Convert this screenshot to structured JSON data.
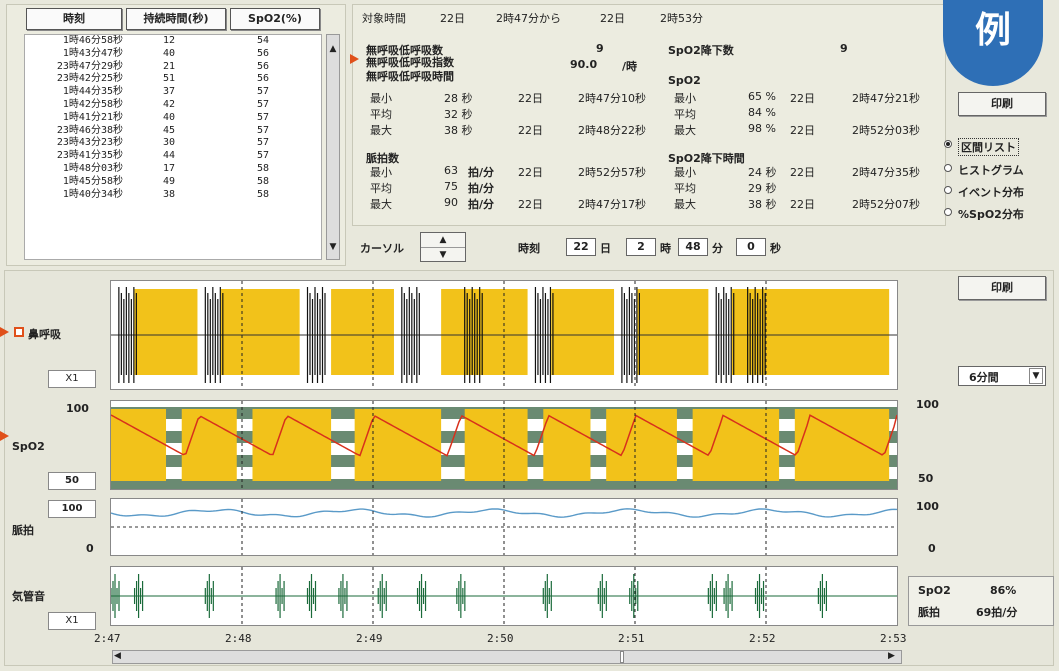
{
  "event_table": {
    "headers": [
      "時刻",
      "持続時間(秒)",
      "SpO2(%)"
    ],
    "rows": [
      [
        "1時46分58秒",
        "12",
        "54"
      ],
      [
        "1時43分47秒",
        "40",
        "56"
      ],
      [
        "23時47分29秒",
        "21",
        "56"
      ],
      [
        "23時42分25秒",
        "51",
        "56"
      ],
      [
        "1時44分35秒",
        "37",
        "57"
      ],
      [
        "1時42分58秒",
        "42",
        "57"
      ],
      [
        "1時41分21秒",
        "40",
        "57"
      ],
      [
        "23時46分38秒",
        "45",
        "57"
      ],
      [
        "23時43分23秒",
        "30",
        "57"
      ],
      [
        "23時41分35秒",
        "44",
        "57"
      ],
      [
        "1時48分03秒",
        "17",
        "58"
      ],
      [
        "1時45分58秒",
        "49",
        "58"
      ],
      [
        "1時40分34秒",
        "38",
        "58"
      ]
    ]
  },
  "summary": {
    "period_label": "対象時間",
    "period_from_day": "22日",
    "period_from_time": "2時47分から",
    "period_to_day": "22日",
    "period_to_time": "2時53分",
    "apnea_count_label": "無呼吸低呼吸数",
    "apnea_count_value": "9",
    "apnea_index_label": "無呼吸低呼吸指数",
    "apnea_index_value": "90.0",
    "apnea_index_unit": "/時",
    "apnea_time_label": "無呼吸低呼吸時間",
    "spo2_drop_label": "SpO2降下数",
    "spo2_drop_value": "9",
    "spo2_label": "SpO2",
    "min_label": "最小",
    "avg_label": "平均",
    "max_label": "最大",
    "ap_min": "28 秒",
    "ap_min_day": "22日",
    "ap_min_time": "2時47分10秒",
    "ap_avg": "32 秒",
    "ap_max": "38 秒",
    "ap_max_day": "22日",
    "ap_max_time": "2時48分22秒",
    "sp_min": "65 %",
    "sp_min_day": "22日",
    "sp_min_time": "2時47分21秒",
    "sp_avg": "84 %",
    "sp_max": "98 %",
    "sp_max_day": "22日",
    "sp_max_time": "2時52分03秒",
    "pulse_label": "脈拍数",
    "pr_min": "63",
    "pr_unit": "拍/分",
    "pr_min_day": "22日",
    "pr_min_time": "2時52分57秒",
    "pr_avg": "75",
    "pr_max": "90",
    "pr_max_day": "22日",
    "pr_max_time": "2時47分17秒",
    "drop_time_label": "SpO2降下時間",
    "dt_min": "24 秒",
    "dt_min_day": "22日",
    "dt_min_time": "2時47分35秒",
    "dt_avg": "29 秒",
    "dt_max": "38 秒",
    "dt_max_day": "22日",
    "dt_max_time": "2時52分07秒"
  },
  "badge": "例",
  "print_label": "印刷",
  "radio_options": [
    "区間リスト",
    "ヒストグラム",
    "イベント分布",
    "%SpO2分布"
  ],
  "cursor": {
    "label": "カーソル",
    "time_label": "時刻",
    "day": "22",
    "day_unit": "日",
    "hour": "2",
    "hour_unit": "時",
    "minute": "48",
    "minute_unit": "分",
    "second": "0",
    "second_unit": "秒"
  },
  "graph": {
    "resp_label": "鼻呼吸",
    "resp_scale": "X1",
    "spo2_label": "SpO2",
    "spo2_top": "100",
    "spo2_bottom": "50",
    "spo2_right_top": "100",
    "spo2_right_bottom": "50",
    "pulse_label": "脈拍",
    "pulse_top": "100",
    "pulse_bottom": "0",
    "pulse_right_top": "100",
    "pulse_right_bottom": "0",
    "snore_label": "気管音",
    "snore_scale": "X1",
    "range_select": "6分間",
    "times": [
      "2:47",
      "2:48",
      "2:49",
      "2:50",
      "2:51",
      "2:52",
      "2:53"
    ],
    "readout_spo2_label": "SpO2",
    "readout_spo2_value": "86%",
    "readout_pulse_label": "脈拍",
    "readout_pulse_value": "69拍/分"
  },
  "colors": {
    "event": "#f2c21a",
    "spo2_line": "#d8301c",
    "pulse_line": "#5a9ac8",
    "snore": "#1a6a3a",
    "band": "#6a8a72"
  }
}
